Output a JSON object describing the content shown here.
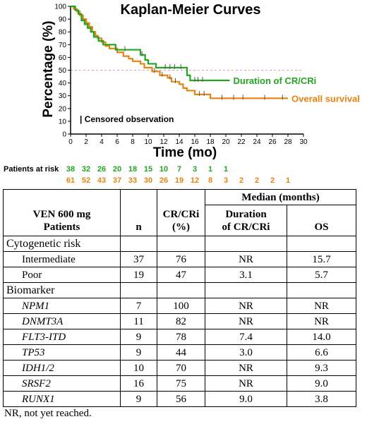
{
  "chart_data": {
    "type": "line",
    "title": "Kaplan-Meier Curves",
    "xlabel": "Time (mo)",
    "ylabel": "Percentage (%)",
    "xlim": [
      0,
      30
    ],
    "ylim": [
      0,
      100
    ],
    "xticks": [
      0,
      2,
      4,
      6,
      8,
      10,
      12,
      14,
      16,
      18,
      20,
      22,
      24,
      26,
      28,
      30
    ],
    "yticks": [
      0,
      10,
      20,
      30,
      40,
      50,
      60,
      70,
      80,
      90,
      100
    ],
    "reference_line": 50,
    "censor_note": "| Censored observation",
    "series": [
      {
        "name": "Duration of CR/CRi",
        "color": "#22a622",
        "steps": [
          [
            0,
            100
          ],
          [
            0.6,
            97
          ],
          [
            1.0,
            94
          ],
          [
            1.4,
            89
          ],
          [
            1.8,
            86
          ],
          [
            2.2,
            83
          ],
          [
            2.6,
            80
          ],
          [
            3.0,
            76
          ],
          [
            3.6,
            73
          ],
          [
            4.2,
            70
          ],
          [
            5.8,
            66
          ],
          [
            9.0,
            62
          ],
          [
            9.6,
            58
          ],
          [
            10.0,
            55
          ],
          [
            11.0,
            52
          ],
          [
            15.0,
            46
          ],
          [
            15.4,
            42
          ],
          [
            20.5,
            42
          ]
        ],
        "censors": [
          [
            7.0,
            66
          ],
          [
            9.2,
            62
          ],
          [
            12.2,
            52
          ],
          [
            12.8,
            52
          ],
          [
            13.4,
            52
          ],
          [
            14.2,
            52
          ],
          [
            16.0,
            42
          ],
          [
            16.4,
            42
          ],
          [
            17.0,
            42
          ]
        ]
      },
      {
        "name": "Overall survival",
        "color": "#e8830f",
        "steps": [
          [
            0,
            100
          ],
          [
            0.4,
            98
          ],
          [
            0.8,
            96
          ],
          [
            1.2,
            93
          ],
          [
            1.6,
            90
          ],
          [
            2.0,
            87
          ],
          [
            2.4,
            84
          ],
          [
            2.8,
            80
          ],
          [
            3.2,
            77
          ],
          [
            3.5,
            75
          ],
          [
            4.0,
            72
          ],
          [
            4.5,
            69
          ],
          [
            5.0,
            67
          ],
          [
            6.0,
            64
          ],
          [
            6.8,
            61
          ],
          [
            7.5,
            59
          ],
          [
            8.0,
            57
          ],
          [
            9.0,
            55
          ],
          [
            9.5,
            52
          ],
          [
            10.5,
            49
          ],
          [
            11.5,
            46
          ],
          [
            12.5,
            44
          ],
          [
            13.0,
            41
          ],
          [
            14.0,
            39
          ],
          [
            14.5,
            36
          ],
          [
            15.0,
            34
          ],
          [
            16.0,
            31
          ],
          [
            18.0,
            28
          ],
          [
            28.0,
            28
          ]
        ],
        "censors": [
          [
            10.8,
            49
          ],
          [
            11.8,
            46
          ],
          [
            12.8,
            44
          ],
          [
            13.5,
            41
          ],
          [
            16.6,
            31
          ],
          [
            17.2,
            31
          ],
          [
            19.5,
            28
          ],
          [
            21,
            28
          ],
          [
            22.2,
            28
          ],
          [
            25,
            28
          ],
          [
            27.3,
            28
          ]
        ]
      }
    ],
    "patients_at_risk": {
      "label": "Patients at risk",
      "rows": [
        {
          "series": "Duration of CR/CRi",
          "values": [
            "38",
            "32",
            "26",
            "20",
            "18",
            "15",
            "10",
            "7",
            "3",
            "1",
            "1"
          ]
        },
        {
          "series": "Overall survival",
          "values": [
            "61",
            "52",
            "43",
            "37",
            "33",
            "30",
            "26",
            "19",
            "12",
            "8",
            "3",
            "2",
            "2",
            "2",
            "1"
          ]
        }
      ]
    }
  },
  "table": {
    "header": {
      "patients": "VEN 600 mg\nPatients",
      "n": "n",
      "cr": "CR/CRi\n(%)",
      "median": "Median (months)",
      "duration": "Duration\nof CR/CRi",
      "os": "OS"
    },
    "sections": [
      {
        "title": "Cytogenetic risk",
        "italic": false,
        "rows": [
          {
            "label": "Intermediate",
            "n": "37",
            "cr": "76",
            "dur": "NR",
            "os": "15.7"
          },
          {
            "label": "Poor",
            "n": "19",
            "cr": "47",
            "dur": "3.1",
            "os": "5.7"
          }
        ]
      },
      {
        "title": "Biomarker",
        "italic": true,
        "rows": [
          {
            "label": "NPM1",
            "n": "7",
            "cr": "100",
            "dur": "NR",
            "os": "NR"
          },
          {
            "label": "DNMT3A",
            "n": "11",
            "cr": "82",
            "dur": "NR",
            "os": "NR"
          },
          {
            "label": "FLT3-ITD",
            "n": "9",
            "cr": "78",
            "dur": "7.4",
            "os": "14.0"
          },
          {
            "label": "TP53",
            "n": "9",
            "cr": "44",
            "dur": "3.0",
            "os": "6.6"
          },
          {
            "label": "IDH1/2",
            "n": "10",
            "cr": "70",
            "dur": "NR",
            "os": "9.3"
          },
          {
            "label": "SRSF2",
            "n": "16",
            "cr": "75",
            "dur": "NR",
            "os": "9.0"
          },
          {
            "label": "RUNX1",
            "n": "9",
            "cr": "56",
            "dur": "9.0",
            "os": "3.8"
          }
        ]
      }
    ],
    "footnote": "NR, not yet reached."
  }
}
